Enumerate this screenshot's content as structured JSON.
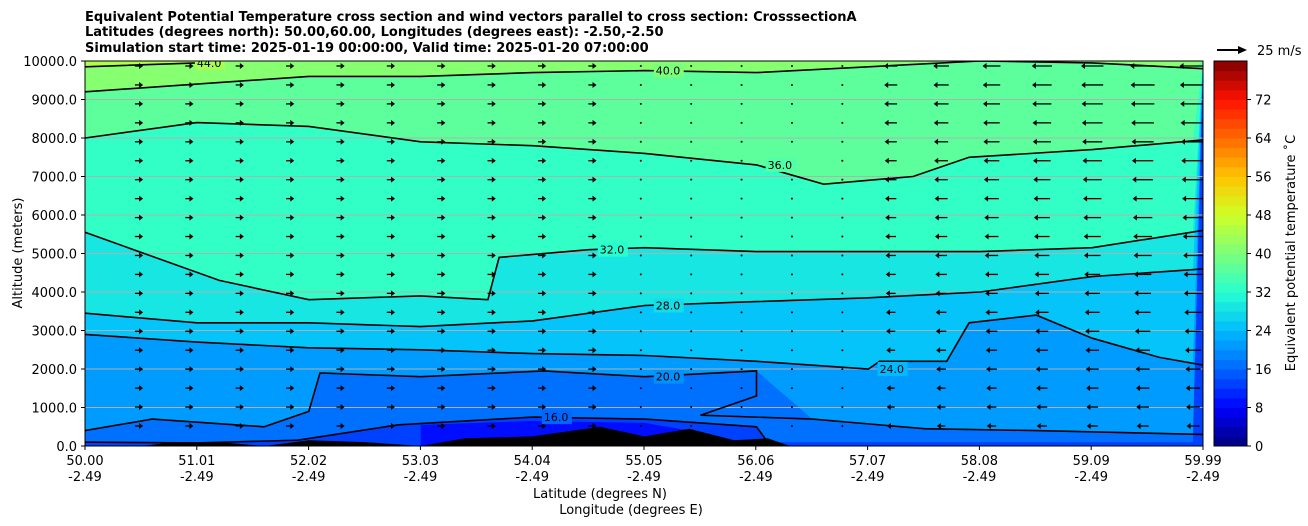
{
  "chart_data": {
    "type": "heatmap",
    "title_lines": [
      "Equivalent Potential Temperature cross section and wind vectors parallel to cross section: CrosssectionA",
      "Latitudes (degrees north): 50.00,60.00, Longitudes (degrees east): -2.50,-2.50",
      "Simulation start time: 2025-01-19 00:00:00, Valid time: 2025-01-20 07:00:00"
    ],
    "xlabel_lat": "Latitude (degrees N)",
    "xlabel_lon": "Longitude (degrees E)",
    "ylabel": "Altitude (meters)",
    "colorbar_label": "Equivalent potential temperature ˚C",
    "x_ticks_lat": [
      "50.00",
      "51.01",
      "52.02",
      "53.03",
      "54.04",
      "55.05",
      "56.06",
      "57.07",
      "58.08",
      "59.09",
      "59.99"
    ],
    "x_ticks_lon": [
      "-2.49",
      "-2.49",
      "-2.49",
      "-2.49",
      "-2.49",
      "-2.49",
      "-2.49",
      "-2.49",
      "-2.49",
      "-2.49",
      "-2.49"
    ],
    "y_ticks": [
      "0.0",
      "1000.0",
      "2000.0",
      "3000.0",
      "4000.0",
      "5000.0",
      "6000.0",
      "7000.0",
      "8000.0",
      "9000.0",
      "10000.0"
    ],
    "ylim": [
      0,
      10000
    ],
    "xlim": [
      50.0,
      59.99
    ],
    "colorbar_ticks": [
      "0",
      "8",
      "16",
      "24",
      "32",
      "40",
      "48",
      "56",
      "64",
      "72"
    ],
    "colorbar_range": [
      0,
      80
    ],
    "wind_reference_label": "25 m/s",
    "grid": "horizontal",
    "contours": [
      {
        "level": 16,
        "label": "16.0",
        "points": [
          [
            50.0,
            100
          ],
          [
            51.0,
            80
          ],
          [
            51.9,
            150
          ],
          [
            52.8,
            550
          ],
          [
            54.0,
            750
          ],
          [
            55.0,
            700
          ],
          [
            56.0,
            500
          ],
          [
            56.1,
            100
          ]
        ]
      },
      {
        "level": 20,
        "label": "20.0",
        "points": [
          [
            50.0,
            400
          ],
          [
            50.6,
            700
          ],
          [
            51.6,
            500
          ],
          [
            52.0,
            900
          ],
          [
            52.1,
            1900
          ],
          [
            53.0,
            1800
          ],
          [
            54.1,
            1950
          ],
          [
            55.0,
            1800
          ],
          [
            56.0,
            1950
          ],
          [
            56.0,
            1300
          ],
          [
            55.5,
            800
          ],
          [
            56.5,
            700
          ],
          [
            57.5,
            450
          ],
          [
            58.5,
            400
          ],
          [
            59.99,
            300
          ]
        ]
      },
      {
        "level": 24,
        "label": "24.0",
        "points": [
          [
            50.0,
            2900
          ],
          [
            51.0,
            2700
          ],
          [
            52.0,
            2550
          ],
          [
            53.0,
            2500
          ],
          [
            54.0,
            2400
          ],
          [
            55.0,
            2350
          ],
          [
            56.0,
            2200
          ],
          [
            57.0,
            2000
          ],
          [
            57.1,
            2200
          ],
          [
            57.7,
            2200
          ],
          [
            57.9,
            3200
          ],
          [
            58.5,
            3400
          ],
          [
            59.0,
            2800
          ],
          [
            59.6,
            2300
          ],
          [
            59.99,
            2100
          ]
        ]
      },
      {
        "level": 28,
        "label": "28.0",
        "points": [
          [
            50.0,
            3450
          ],
          [
            51.0,
            3200
          ],
          [
            52.0,
            3200
          ],
          [
            53.0,
            3100
          ],
          [
            54.0,
            3250
          ],
          [
            55.0,
            3650
          ],
          [
            56.0,
            3750
          ],
          [
            57.0,
            3850
          ],
          [
            58.0,
            4000
          ],
          [
            59.0,
            4400
          ],
          [
            59.99,
            4600
          ]
        ]
      },
      {
        "level": 32,
        "label": "32.0",
        "points": [
          [
            50.0,
            5550
          ],
          [
            51.2,
            4300
          ],
          [
            52.0,
            3800
          ],
          [
            53.0,
            3900
          ],
          [
            53.6,
            3800
          ],
          [
            53.7,
            4900
          ],
          [
            54.5,
            5100
          ],
          [
            55.0,
            5150
          ],
          [
            56.0,
            5050
          ],
          [
            57.0,
            5050
          ],
          [
            58.0,
            5050
          ],
          [
            59.0,
            5150
          ],
          [
            59.99,
            5600
          ]
        ]
      },
      {
        "level": 36,
        "label": "36.0",
        "points": [
          [
            50.0,
            8000
          ],
          [
            51.0,
            8400
          ],
          [
            52.0,
            8300
          ],
          [
            53.0,
            7900
          ],
          [
            54.0,
            7800
          ],
          [
            55.0,
            7600
          ],
          [
            56.0,
            7300
          ],
          [
            56.6,
            6800
          ],
          [
            57.4,
            7000
          ],
          [
            57.9,
            7500
          ],
          [
            59.0,
            7700
          ],
          [
            59.99,
            7950
          ]
        ]
      },
      {
        "level": 40,
        "label": "40.0",
        "points": [
          [
            50.0,
            9200
          ],
          [
            51.0,
            9400
          ],
          [
            52.0,
            9600
          ],
          [
            53.0,
            9600
          ],
          [
            54.0,
            9700
          ],
          [
            55.0,
            9750
          ],
          [
            56.0,
            9700
          ],
          [
            57.0,
            9850
          ],
          [
            58.0,
            10000
          ],
          [
            59.0,
            9950
          ],
          [
            59.99,
            9800
          ]
        ]
      },
      {
        "level": 44,
        "label": "44.0",
        "points": [
          [
            50.0,
            9850
          ],
          [
            51.0,
            9950
          ],
          [
            51.2,
            10000
          ]
        ]
      }
    ],
    "terrain": [
      [
        50.0,
        0
      ],
      [
        50.5,
        0
      ],
      [
        50.8,
        100
      ],
      [
        51.2,
        100
      ],
      [
        51.6,
        0
      ],
      [
        52.0,
        150
      ],
      [
        52.5,
        100
      ],
      [
        53.0,
        0
      ],
      [
        53.4,
        200
      ],
      [
        54.0,
        250
      ],
      [
        54.6,
        500
      ],
      [
        55.0,
        250
      ],
      [
        55.4,
        450
      ],
      [
        55.8,
        150
      ],
      [
        56.1,
        200
      ],
      [
        56.3,
        0
      ],
      [
        57.4,
        0
      ],
      [
        58.0,
        0
      ]
    ],
    "colormap": [
      [
        0,
        "#00007f"
      ],
      [
        8,
        "#0000ff"
      ],
      [
        16,
        "#0066ff"
      ],
      [
        24,
        "#00bbff"
      ],
      [
        32,
        "#27ffd0"
      ],
      [
        40,
        "#7bff7b"
      ],
      [
        48,
        "#d0ff27"
      ],
      [
        56,
        "#ffc400"
      ],
      [
        64,
        "#ff6a00"
      ],
      [
        72,
        "#ff1100"
      ],
      [
        80,
        "#7f0000"
      ]
    ]
  }
}
